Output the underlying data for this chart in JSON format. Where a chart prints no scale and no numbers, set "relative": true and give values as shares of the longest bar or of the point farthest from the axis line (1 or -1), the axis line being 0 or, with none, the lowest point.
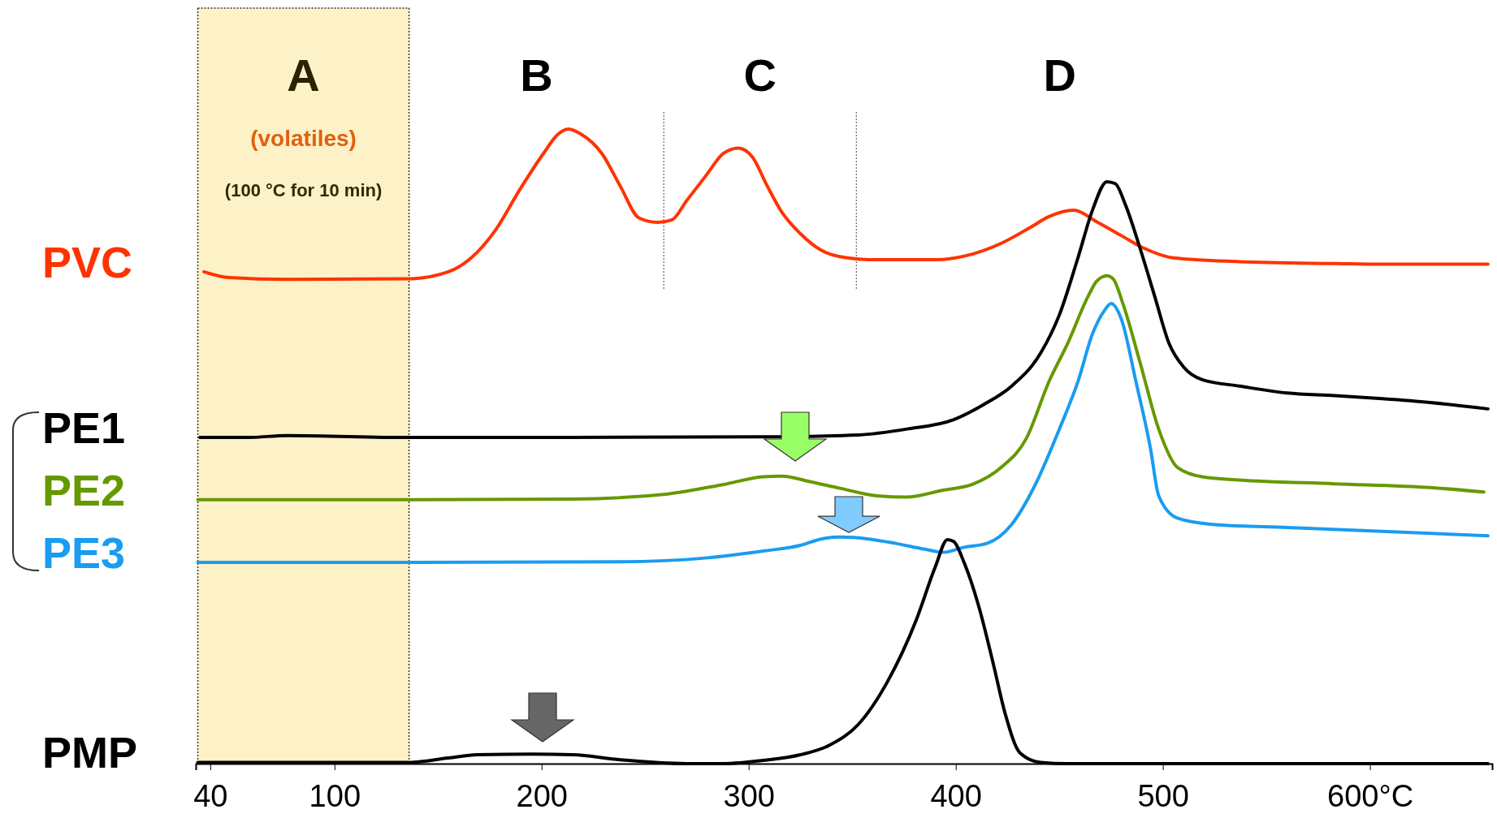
{
  "chart_data": {
    "type": "line",
    "relative": true,
    "xlim": [
      33,
      659
    ],
    "xticks": [
      40,
      100,
      200,
      300,
      400,
      500,
      {
        "value": 600,
        "label": "600°C"
      }
    ],
    "tick_labels": "x",
    "grid": false,
    "legend": false,
    "marker": "none",
    "line_style": "solid",
    "bands": [
      {
        "axis": "x",
        "from": 34,
        "to": 136,
        "label": "A",
        "color": "#fdf1c7"
      }
    ],
    "ref_lines": [
      {
        "axis": "x",
        "value": 259,
        "label": null,
        "color": "#666666",
        "line_style": "dotted"
      },
      {
        "axis": "x",
        "value": 352,
        "label": null,
        "color": "#666666",
        "line_style": "dotted"
      }
    ],
    "annotations": [
      "(volatiles)",
      "(100 °C for 10 min)",
      "B",
      "C",
      "D"
    ],
    "series": [
      {
        "name": "PVC",
        "color": "#ff3300",
        "x": [
          37,
          49,
          77,
          136,
          155,
          166,
          178,
          189,
          201,
          208,
          213,
          219,
          229,
          238,
          247,
          256,
          263,
          270,
          279,
          288,
          295,
          302,
          309,
          316,
          325,
          335,
          344,
          362,
          390,
          408,
          422,
          436,
          445,
          457,
          468,
          480,
          491,
          505,
          537,
          583,
          606,
          657
        ],
        "values": [
          0.775,
          0.766,
          0.763,
          0.764,
          0.775,
          0.797,
          0.842,
          0.902,
          0.962,
          0.992,
          1.0,
          0.992,
          0.962,
          0.91,
          0.86,
          0.853,
          0.857,
          0.887,
          0.925,
          0.962,
          0.97,
          0.955,
          0.91,
          0.869,
          0.835,
          0.809,
          0.799,
          0.794,
          0.794,
          0.803,
          0.82,
          0.845,
          0.862,
          0.872,
          0.854,
          0.832,
          0.812,
          0.797,
          0.791,
          0.788,
          0.787,
          0.787
        ]
      },
      {
        "name": "PE1",
        "color": "#000000",
        "x": [
          35,
          58,
          77,
          136,
          215,
          307,
          353,
          376,
          399,
          413,
          427,
          441,
          450,
          459,
          466,
          473,
          477,
          482,
          489,
          496,
          503,
          510,
          519,
          537,
          560,
          583,
          606,
          629,
          657
        ],
        "values": [
          0.514,
          0.514,
          0.517,
          0.514,
          0.514,
          0.515,
          0.518,
          0.527,
          0.542,
          0.565,
          0.595,
          0.647,
          0.707,
          0.797,
          0.872,
          0.917,
          0.914,
          0.88,
          0.812,
          0.737,
          0.662,
          0.625,
          0.605,
          0.595,
          0.584,
          0.58,
          0.575,
          0.569,
          0.559
        ]
      },
      {
        "name": "PE2",
        "color": "#669900",
        "x": [
          34,
          136,
          215,
          261,
          288,
          307,
          316,
          330,
          344,
          362,
          376,
          394,
          408,
          422,
          434,
          445,
          454,
          464,
          468,
          473,
          476,
          481,
          489,
          498,
          507,
          519,
          537,
          583,
          629,
          655
        ],
        "values": [
          0.416,
          0.416,
          0.417,
          0.425,
          0.44,
          0.452,
          0.453,
          0.444,
          0.434,
          0.422,
          0.42,
          0.431,
          0.44,
          0.467,
          0.512,
          0.602,
          0.662,
          0.737,
          0.76,
          0.769,
          0.764,
          0.722,
          0.632,
          0.527,
          0.467,
          0.452,
          0.447,
          0.441,
          0.435,
          0.428
        ]
      },
      {
        "name": "PE3",
        "color": "#1a9cf0",
        "x": [
          34,
          136,
          238,
          279,
          307,
          325,
          335,
          344,
          358,
          371,
          385,
          394,
          404,
          415,
          427,
          438,
          450,
          459,
          466,
          472,
          475,
          480,
          487,
          494,
          498,
          507,
          524,
          560,
          606,
          657
        ],
        "values": [
          0.317,
          0.317,
          0.318,
          0.324,
          0.335,
          0.344,
          0.354,
          0.357,
          0.354,
          0.347,
          0.338,
          0.333,
          0.341,
          0.347,
          0.377,
          0.437,
          0.527,
          0.602,
          0.677,
          0.715,
          0.725,
          0.7,
          0.602,
          0.497,
          0.422,
          0.387,
          0.377,
          0.372,
          0.366,
          0.359
        ]
      },
      {
        "name": "PMP",
        "color": "#000000",
        "x": [
          34,
          136,
          155,
          169,
          196,
          215,
          238,
          270,
          288,
          307,
          325,
          339,
          353,
          367,
          381,
          390,
          396,
          399,
          404,
          411,
          418,
          424,
          431,
          441,
          454,
          537,
          657
        ],
        "values": [
          0.002,
          0.002,
          0.009,
          0.014,
          0.015,
          0.014,
          0.006,
          0,
          0,
          0.005,
          0.014,
          0.029,
          0.062,
          0.129,
          0.227,
          0.309,
          0.353,
          0.35,
          0.317,
          0.249,
          0.159,
          0.077,
          0.017,
          0.002,
          0,
          0,
          0
        ]
      }
    ]
  }
}
